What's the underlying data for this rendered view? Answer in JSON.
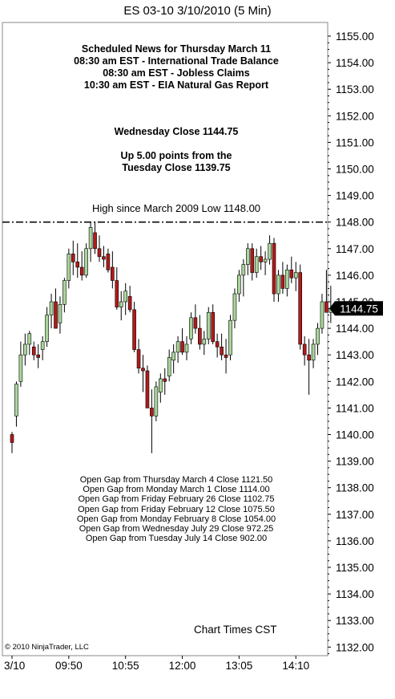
{
  "chart_data": {
    "type": "candlestick",
    "title": "ES 03-10  3/10/2010 (5 Min)",
    "y_ticks": [
      "1155.00",
      "1154.00",
      "1153.00",
      "1152.00",
      "1151.00",
      "1150.00",
      "1149.00",
      "1148.00",
      "1147.00",
      "1146.00",
      "1145.00",
      "1144.00",
      "1143.00",
      "1142.00",
      "1141.00",
      "1140.00",
      "1139.00",
      "1138.00",
      "1137.00",
      "1136.00",
      "1135.00",
      "1134.00",
      "1133.00",
      "1132.00"
    ],
    "ylim": [
      1131.9,
      1156.2
    ],
    "x_ticks": [
      "3/10",
      "09:50",
      "10:55",
      "12:00",
      "13:05",
      "14:10"
    ],
    "x_tick_bars": [
      0,
      13,
      26,
      39,
      52,
      65
    ],
    "last_price": "1144.75",
    "reference_line": {
      "value": 1148.0,
      "label": "High since March 2009 Low 1148.00"
    },
    "colors": {
      "up": "#a9d79a",
      "down": "#b21a1a",
      "outline": "#000000",
      "last_price_box": "#000000",
      "ref_line": "#000000"
    },
    "candles": [
      [
        1140.0,
        1140.1,
        1139.3,
        1139.7
      ],
      [
        1140.7,
        1142.0,
        1140.3,
        1141.9
      ],
      [
        1142.0,
        1143.5,
        1141.8,
        1143.0
      ],
      [
        1143.0,
        1143.8,
        1142.6,
        1143.4
      ],
      [
        1143.4,
        1143.9,
        1143.0,
        1143.8
      ],
      [
        1143.3,
        1143.5,
        1142.8,
        1143.0
      ],
      [
        1143.0,
        1143.4,
        1142.5,
        1142.9
      ],
      [
        1143.2,
        1143.7,
        1142.8,
        1143.5
      ],
      [
        1143.5,
        1144.8,
        1143.3,
        1144.5
      ],
      [
        1144.5,
        1145.3,
        1144.0,
        1145.0
      ],
      [
        1145.0,
        1145.5,
        1144.0,
        1144.0
      ],
      [
        1144.2,
        1145.2,
        1143.8,
        1144.9
      ],
      [
        1144.9,
        1145.9,
        1144.6,
        1145.8
      ],
      [
        1145.8,
        1147.0,
        1145.5,
        1146.8
      ],
      [
        1146.8,
        1147.3,
        1146.0,
        1146.5
      ],
      [
        1146.5,
        1147.2,
        1145.9,
        1146.3
      ],
      [
        1146.3,
        1146.9,
        1145.8,
        1146.0
      ],
      [
        1146.0,
        1147.2,
        1145.9,
        1147.0
      ],
      [
        1147.0,
        1148.0,
        1146.5,
        1147.8
      ],
      [
        1147.6,
        1148.0,
        1146.8,
        1147.0
      ],
      [
        1147.0,
        1147.5,
        1146.5,
        1146.7
      ],
      [
        1146.7,
        1147.1,
        1146.3,
        1146.6
      ],
      [
        1146.8,
        1147.0,
        1146.1,
        1146.2
      ],
      [
        1146.3,
        1146.9,
        1145.5,
        1145.8
      ],
      [
        1145.8,
        1146.3,
        1144.7,
        1144.8
      ],
      [
        1144.8,
        1145.4,
        1144.3,
        1145.0
      ],
      [
        1145.0,
        1145.7,
        1144.5,
        1145.4
      ],
      [
        1145.2,
        1145.6,
        1144.6,
        1144.7
      ],
      [
        1144.7,
        1145.0,
        1143.1,
        1143.2
      ],
      [
        1143.2,
        1143.6,
        1142.3,
        1142.5
      ],
      [
        1142.5,
        1143.0,
        1141.6,
        1142.4
      ],
      [
        1142.4,
        1142.6,
        1141.0,
        1141.0
      ],
      [
        1141.0,
        1141.7,
        1139.3,
        1140.7
      ],
      [
        1140.7,
        1142.0,
        1140.5,
        1141.8
      ],
      [
        1141.6,
        1142.3,
        1141.2,
        1142.1
      ],
      [
        1142.1,
        1142.5,
        1141.5,
        1142.0
      ],
      [
        1142.2,
        1143.2,
        1142.0,
        1142.9
      ],
      [
        1142.8,
        1143.4,
        1142.3,
        1143.1
      ],
      [
        1143.1,
        1143.7,
        1142.7,
        1143.5
      ],
      [
        1143.5,
        1144.0,
        1143.0,
        1143.1
      ],
      [
        1143.1,
        1143.7,
        1142.8,
        1143.4
      ],
      [
        1143.6,
        1144.6,
        1143.4,
        1144.4
      ],
      [
        1144.4,
        1144.9,
        1143.8,
        1144.0
      ],
      [
        1144.0,
        1144.5,
        1143.2,
        1143.4
      ],
      [
        1143.4,
        1143.9,
        1143.0,
        1143.6
      ],
      [
        1143.6,
        1144.8,
        1143.4,
        1144.6
      ],
      [
        1144.6,
        1144.9,
        1143.4,
        1143.5
      ],
      [
        1143.5,
        1143.8,
        1142.9,
        1143.3
      ],
      [
        1143.3,
        1143.8,
        1142.8,
        1143.0
      ],
      [
        1143.0,
        1143.6,
        1142.3,
        1142.9
      ],
      [
        1143.0,
        1144.5,
        1142.8,
        1144.3
      ],
      [
        1144.3,
        1145.5,
        1144.0,
        1145.3
      ],
      [
        1145.3,
        1146.2,
        1145.0,
        1146.0
      ],
      [
        1146.0,
        1146.6,
        1145.2,
        1146.4
      ],
      [
        1146.4,
        1147.2,
        1146.0,
        1147.0
      ],
      [
        1147.0,
        1147.2,
        1145.8,
        1146.1
      ],
      [
        1146.1,
        1147.0,
        1145.9,
        1146.7
      ],
      [
        1146.7,
        1147.1,
        1146.2,
        1146.5
      ],
      [
        1146.5,
        1146.9,
        1146.0,
        1146.6
      ],
      [
        1146.6,
        1147.5,
        1146.4,
        1147.2
      ],
      [
        1147.2,
        1147.4,
        1145.0,
        1145.3
      ],
      [
        1145.3,
        1146.2,
        1145.0,
        1146.0
      ],
      [
        1146.0,
        1146.5,
        1145.3,
        1145.5
      ],
      [
        1145.5,
        1146.4,
        1145.2,
        1146.2
      ],
      [
        1146.2,
        1146.7,
        1145.7,
        1145.9
      ],
      [
        1145.9,
        1146.5,
        1145.4,
        1146.1
      ],
      [
        1146.1,
        1146.4,
        1143.2,
        1143.4
      ],
      [
        1143.4,
        1143.7,
        1142.6,
        1143.0
      ],
      [
        1143.0,
        1143.6,
        1141.5,
        1142.8
      ],
      [
        1142.8,
        1143.6,
        1142.5,
        1143.4
      ],
      [
        1143.4,
        1144.2,
        1143.0,
        1144.0
      ],
      [
        1144.0,
        1145.3,
        1143.8,
        1145.0
      ],
      [
        1145.0,
        1146.2,
        1144.6,
        1144.6
      ],
      [
        1144.6,
        1145.6,
        1144.2,
        1144.75
      ]
    ]
  },
  "annotations": {
    "news_lines": [
      "Scheduled News for Thursday March 11",
      "08:30 am EST - International Trade Balance",
      "08:30 am EST - Jobless Claims",
      "10:30 am EST - EIA Natural Gas Report"
    ],
    "close_line": "Wednesday Close 1144.75",
    "change_lines": [
      "Up 5.00 points from the",
      "Tuesday Close 1139.75"
    ],
    "gap_lines": [
      "Open Gap from Thursday March 4 Close 1121.50",
      "Open Gap from Monday March 1 Close 1114.00",
      "Open Gap from Friday February 26 Close 1102.75",
      "Open Gap from Friday February 12 Close 1075.50",
      "Open Gap from Monday February 8 Close 1054.00",
      "Open Gap from Wednesday July 29 Close 972.25",
      "Open Gap from Tuesday July 14 Close 902.00"
    ],
    "chart_times": "Chart Times CST",
    "copyright": "© 2010 NinjaTrader, LLC"
  }
}
